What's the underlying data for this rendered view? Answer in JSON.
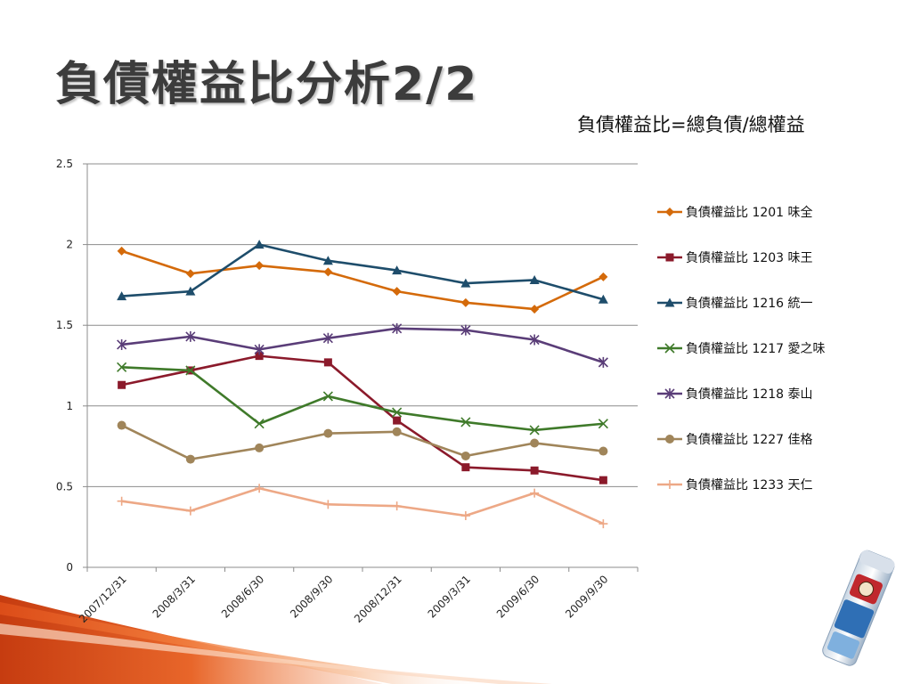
{
  "slide": {
    "title": "負債權益比分析2/2",
    "subtitle": "負債權益比=總負債/總權益"
  },
  "chart_data": {
    "type": "line",
    "title": "",
    "xlabel": "",
    "ylabel": "",
    "categories": [
      "2007/12/31",
      "2008/3/31",
      "2008/6/30",
      "2008/9/30",
      "2008/12/31",
      "2009/3/31",
      "2009/6/30",
      "2009/9/30"
    ],
    "ylim": [
      0,
      2.5
    ],
    "yticks": [
      "0",
      "0.5",
      "1",
      "1.5",
      "2",
      "2.5"
    ],
    "grid": true,
    "legend_position": "right",
    "series": [
      {
        "name": "負債權益比 1201 味全",
        "color": "#d46a0a",
        "marker": "diamond",
        "values": [
          1.96,
          1.82,
          1.87,
          1.83,
          1.71,
          1.64,
          1.6,
          1.8
        ]
      },
      {
        "name": "負債權益比 1203 味王",
        "color": "#8b1a2b",
        "marker": "square",
        "values": [
          1.13,
          1.22,
          1.31,
          1.27,
          0.91,
          0.62,
          0.6,
          0.54
        ]
      },
      {
        "name": "負債權益比 1216 統一",
        "color": "#1e4d6b",
        "marker": "triangle",
        "values": [
          1.68,
          1.71,
          2.0,
          1.9,
          1.84,
          1.76,
          1.78,
          1.66
        ]
      },
      {
        "name": "負債權益比 1217 愛之味",
        "color": "#3f7a2a",
        "marker": "x",
        "values": [
          1.24,
          1.22,
          0.89,
          1.06,
          0.96,
          0.9,
          0.85,
          0.89
        ]
      },
      {
        "name": "負債權益比 1218 泰山",
        "color": "#5a3d78",
        "marker": "star",
        "values": [
          1.38,
          1.43,
          1.35,
          1.42,
          1.48,
          1.47,
          1.41,
          1.27
        ]
      },
      {
        "name": "負債權益比 1227 佳格",
        "color": "#a0855a",
        "marker": "circle",
        "values": [
          0.88,
          0.67,
          0.74,
          0.83,
          0.84,
          0.69,
          0.77,
          0.72
        ]
      },
      {
        "name": "負債權益比 1233 天仁",
        "color": "#eda886",
        "marker": "plus",
        "values": [
          0.41,
          0.35,
          0.49,
          0.39,
          0.38,
          0.32,
          0.46,
          0.27
        ]
      }
    ]
  }
}
